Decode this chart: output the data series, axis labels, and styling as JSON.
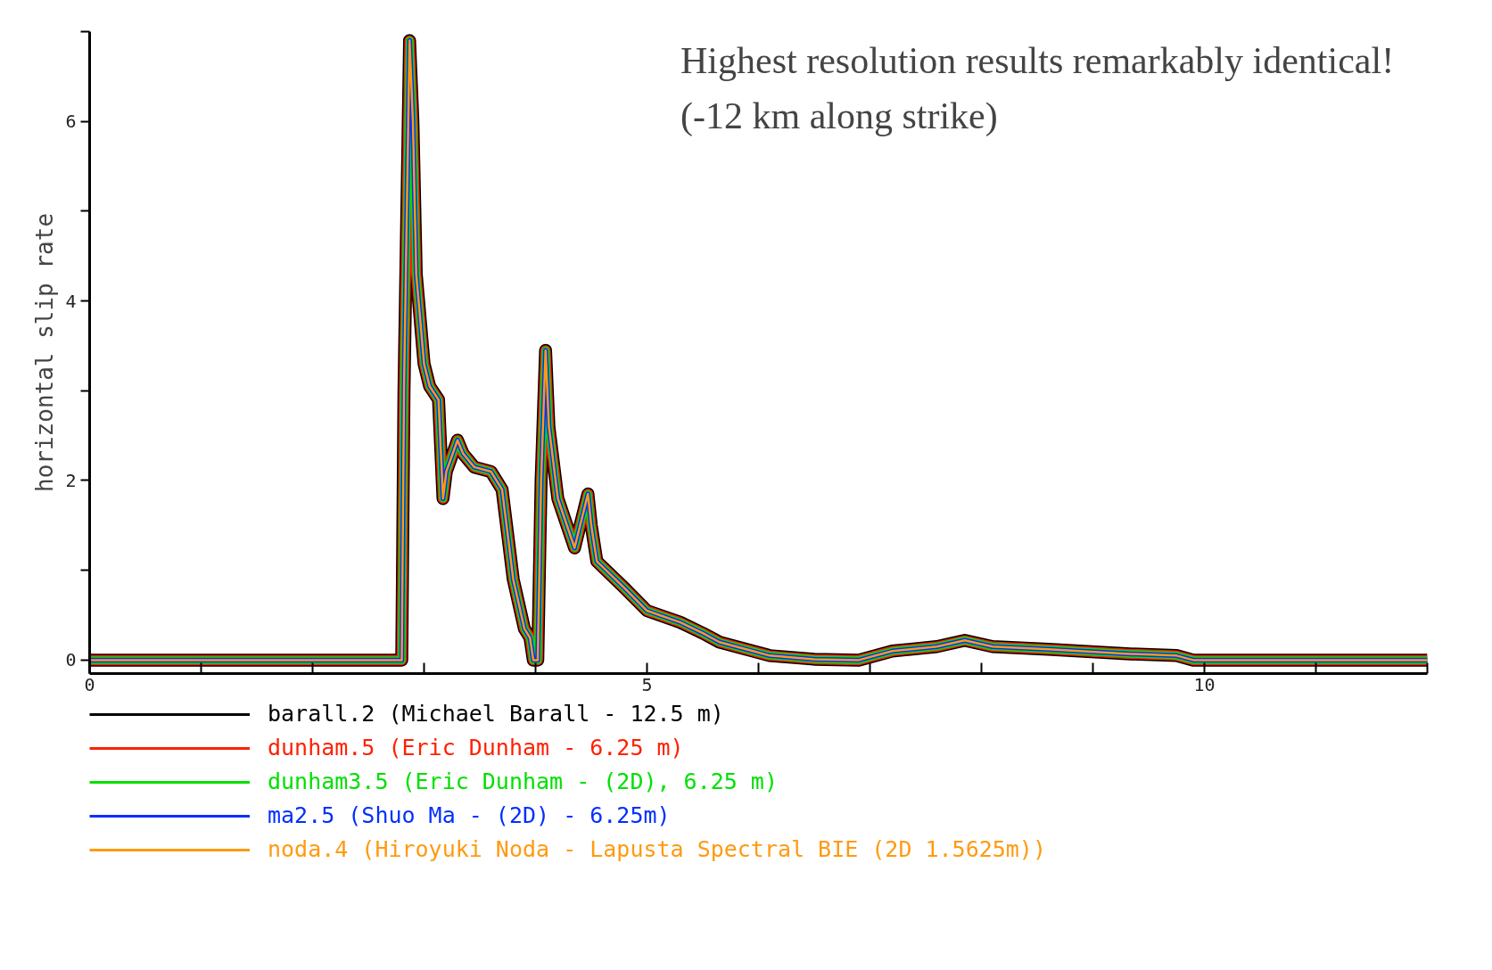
{
  "chart_data": {
    "type": "line",
    "title": "Highest resolution results remarkably identical!",
    "subtitle": "(-12 km along strike)",
    "ylabel": "horizontal slip rate",
    "x": [
      0,
      2.8,
      2.82,
      2.87,
      2.9,
      2.93,
      3.0,
      3.05,
      3.13,
      3.17,
      3.2,
      3.3,
      3.35,
      3.45,
      3.6,
      3.7,
      3.75,
      3.8,
      3.9,
      3.95,
      3.98,
      4.02,
      4.05,
      4.09,
      4.12,
      4.2,
      4.35,
      4.42,
      4.47,
      4.5,
      4.55,
      4.8,
      5.0,
      5.3,
      5.5,
      5.65,
      5.95,
      6.1,
      6.5,
      6.9,
      7.2,
      7.6,
      7.85,
      8.1,
      8.6,
      9.3,
      9.75,
      9.9,
      12
    ],
    "series": [
      {
        "name": "barall.2 (Michael Barall - 12.5 m)",
        "color": "#000000",
        "values": [
          0,
          0,
          3,
          6.9,
          6.0,
          4.3,
          3.3,
          3.05,
          2.9,
          1.8,
          2.1,
          2.45,
          2.3,
          2.15,
          2.1,
          1.9,
          1.4,
          0.9,
          0.35,
          0.25,
          0,
          0,
          2.0,
          3.45,
          2.6,
          1.8,
          1.25,
          1.6,
          1.85,
          1.5,
          1.1,
          0.8,
          0.55,
          0.42,
          0.3,
          0.2,
          0.1,
          0.05,
          0.01,
          0,
          0.1,
          0.15,
          0.22,
          0.15,
          0.12,
          0.07,
          0.05,
          0,
          0
        ]
      },
      {
        "name": "dunham.5 (Eric Dunham - 6.25 m)",
        "color": "#ff2000",
        "values": [
          0,
          0,
          3,
          6.9,
          6.0,
          4.3,
          3.3,
          3.05,
          2.9,
          1.8,
          2.1,
          2.45,
          2.3,
          2.15,
          2.1,
          1.9,
          1.4,
          0.9,
          0.35,
          0.25,
          0,
          0,
          2.0,
          3.45,
          2.6,
          1.8,
          1.25,
          1.6,
          1.85,
          1.5,
          1.1,
          0.8,
          0.55,
          0.42,
          0.3,
          0.2,
          0.1,
          0.05,
          0.01,
          0,
          0.1,
          0.15,
          0.22,
          0.15,
          0.12,
          0.07,
          0.05,
          0,
          0
        ]
      },
      {
        "name": "dunham3.5 (Eric Dunham - (2D), 6.25 m)",
        "color": "#00e000",
        "values": [
          0,
          0,
          3,
          6.9,
          6.0,
          4.3,
          3.3,
          3.05,
          2.9,
          1.8,
          2.1,
          2.45,
          2.3,
          2.15,
          2.1,
          1.9,
          1.4,
          0.9,
          0.35,
          0.25,
          0,
          0,
          2.0,
          3.45,
          2.6,
          1.8,
          1.25,
          1.6,
          1.85,
          1.5,
          1.1,
          0.8,
          0.55,
          0.42,
          0.3,
          0.2,
          0.1,
          0.05,
          0.01,
          0,
          0.1,
          0.15,
          0.22,
          0.15,
          0.12,
          0.07,
          0.05,
          0,
          0
        ]
      },
      {
        "name": "ma2.5 (Shuo Ma - (2D) - 6.25m)",
        "color": "#0030ff",
        "values": [
          0,
          0,
          3,
          6.9,
          6.0,
          4.3,
          3.3,
          3.05,
          2.9,
          1.8,
          2.1,
          2.45,
          2.3,
          2.15,
          2.1,
          1.9,
          1.4,
          0.9,
          0.35,
          0.25,
          0,
          0,
          2.0,
          3.45,
          2.6,
          1.8,
          1.25,
          1.6,
          1.85,
          1.5,
          1.1,
          0.8,
          0.55,
          0.42,
          0.3,
          0.2,
          0.1,
          0.05,
          0.01,
          0,
          0.1,
          0.15,
          0.22,
          0.15,
          0.12,
          0.07,
          0.05,
          0,
          0
        ]
      },
      {
        "name": "noda.4 (Hiroyuki Noda - Lapusta Spectral BIE (2D 1.5625m))",
        "color": "#ff9a10",
        "values": [
          0,
          0,
          3,
          6.9,
          6.0,
          4.3,
          3.3,
          3.05,
          2.9,
          1.8,
          2.1,
          2.45,
          2.3,
          2.15,
          2.1,
          1.9,
          1.4,
          0.9,
          0.35,
          0.25,
          0,
          0,
          2.0,
          3.45,
          2.6,
          1.8,
          1.25,
          1.6,
          1.85,
          1.5,
          1.1,
          0.8,
          0.55,
          0.42,
          0.3,
          0.2,
          0.1,
          0.05,
          0.01,
          0,
          0.1,
          0.15,
          0.22,
          0.15,
          0.12,
          0.07,
          0.05,
          0,
          0
        ]
      }
    ],
    "xlim": [
      0,
      12
    ],
    "ylim": [
      -0.15,
      7
    ],
    "xticks": [
      0,
      {
        "value": 1,
        "label": null
      },
      {
        "value": 2,
        "label": null
      },
      {
        "value": 3,
        "label": null
      },
      {
        "value": 4,
        "label": null
      },
      5,
      {
        "value": 6,
        "label": null
      },
      {
        "value": 7,
        "label": null
      },
      {
        "value": 8,
        "label": null
      },
      {
        "value": 9,
        "label": null
      },
      10,
      {
        "value": 11,
        "label": null
      },
      {
        "value": 12,
        "label": null
      }
    ],
    "yticks": [
      0,
      {
        "value": 1,
        "label": null
      },
      2,
      {
        "value": 3,
        "label": null
      },
      4,
      {
        "value": 5,
        "label": null
      },
      6,
      {
        "value": 7,
        "label": null
      }
    ],
    "grid": false,
    "legend": "bottom",
    "line_style": "solid"
  }
}
